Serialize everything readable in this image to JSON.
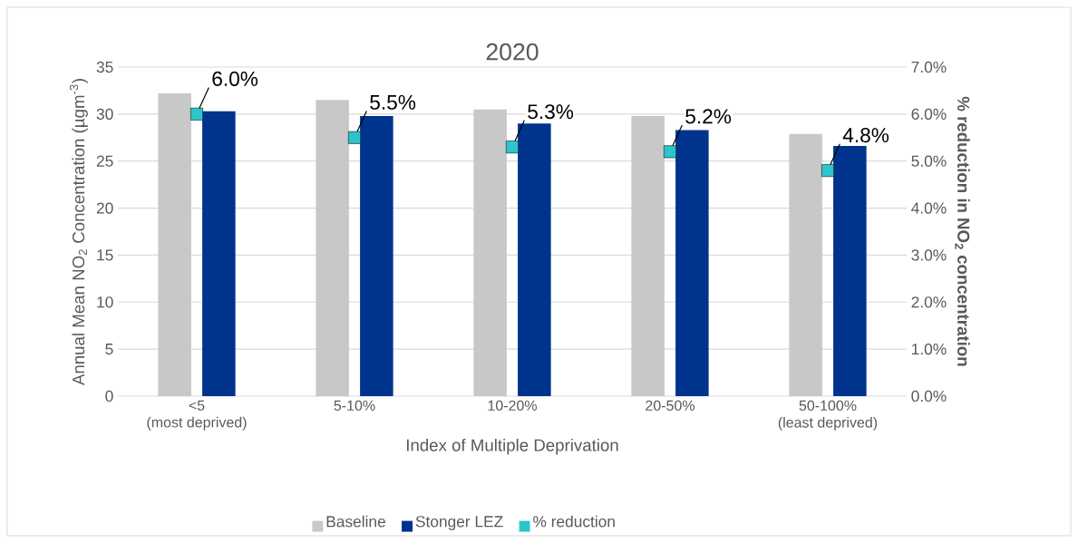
{
  "chart_data": {
    "type": "bar",
    "title": "2020",
    "xlabel": "Index of Multiple Deprivation",
    "ylabel": "Annual Mean NO$_{2}$ Concentration (µgm$^{-3}$)",
    "y2label": "% reduction in NO$_{2}$ concentration",
    "categories": [
      "<5\n(most deprived)",
      "5-10%",
      "10-20%",
      "20-50%",
      "50-100%\n(least deprived)"
    ],
    "series": [
      {
        "name": "Baseline",
        "color": "#c8c8c8",
        "values": [
          32.2,
          31.5,
          30.5,
          29.8,
          27.9
        ]
      },
      {
        "name": "Stonger LEZ",
        "color": "#00338d",
        "values": [
          30.3,
          29.8,
          29.0,
          28.3,
          26.6
        ]
      },
      {
        "name": "% reduction",
        "type": "scatter",
        "axis": "y2",
        "marker": "square",
        "color": "#2ec4cc",
        "values": [
          6.0,
          5.5,
          5.3,
          5.2,
          4.8
        ],
        "value_labels": [
          "6.0%",
          "5.5%",
          "5.3%",
          "5.2%",
          "4.8%"
        ]
      }
    ],
    "ylim": [
      0,
      35
    ],
    "yticks": [
      0,
      5,
      10,
      15,
      20,
      25,
      30,
      35
    ],
    "y2lim": [
      0,
      7
    ],
    "y2ticks": [
      {
        "value": 0,
        "label": "0.0%"
      },
      {
        "value": 1,
        "label": "1.0%"
      },
      {
        "value": 2,
        "label": "2.0%"
      },
      {
        "value": 3,
        "label": "3.0%"
      },
      {
        "value": 4,
        "label": "4.0%"
      },
      {
        "value": 5,
        "label": "5.0%"
      },
      {
        "value": 6,
        "label": "6.0%"
      },
      {
        "value": 7,
        "label": "7.0%"
      }
    ],
    "grid": "y",
    "legend": "bottom"
  }
}
